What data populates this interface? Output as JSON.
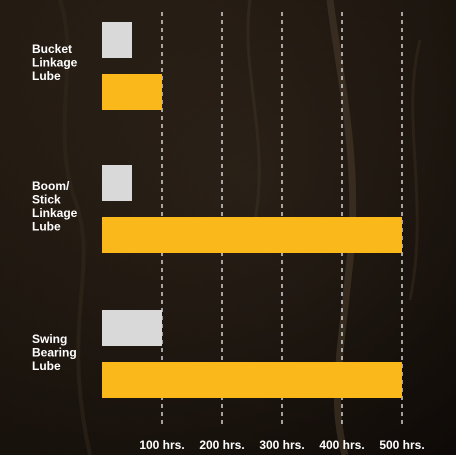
{
  "chart_data": {
    "type": "bar",
    "orientation": "horizontal",
    "categories": [
      "Bucket Linkage Lube",
      "Boom/ Stick Linkage Lube",
      "Swing Bearing Lube"
    ],
    "category_lines": [
      [
        "Bucket",
        "Linkage",
        "Lube"
      ],
      [
        "Boom/",
        "Stick",
        "Linkage",
        "Lube"
      ],
      [
        "Swing",
        "Bearing",
        "Lube"
      ]
    ],
    "series": [
      {
        "values": [
          50,
          50,
          100
        ],
        "color": "#d9d9d9"
      },
      {
        "values": [
          100,
          500,
          500
        ],
        "color": "#fbb81b"
      }
    ],
    "x_ticks": [
      100,
      200,
      300,
      400,
      500
    ],
    "x_tick_labels": [
      "100 hrs.",
      "200 hrs.",
      "300 hrs.",
      "400 hrs.",
      "500 hrs."
    ],
    "xlim": [
      0,
      500
    ],
    "grid": "vertical-dashed",
    "title": "",
    "xlabel": "",
    "ylabel": ""
  },
  "colors": {
    "background": "#1a140f",
    "gridline": "#ffffff",
    "text": "#ffffff"
  }
}
